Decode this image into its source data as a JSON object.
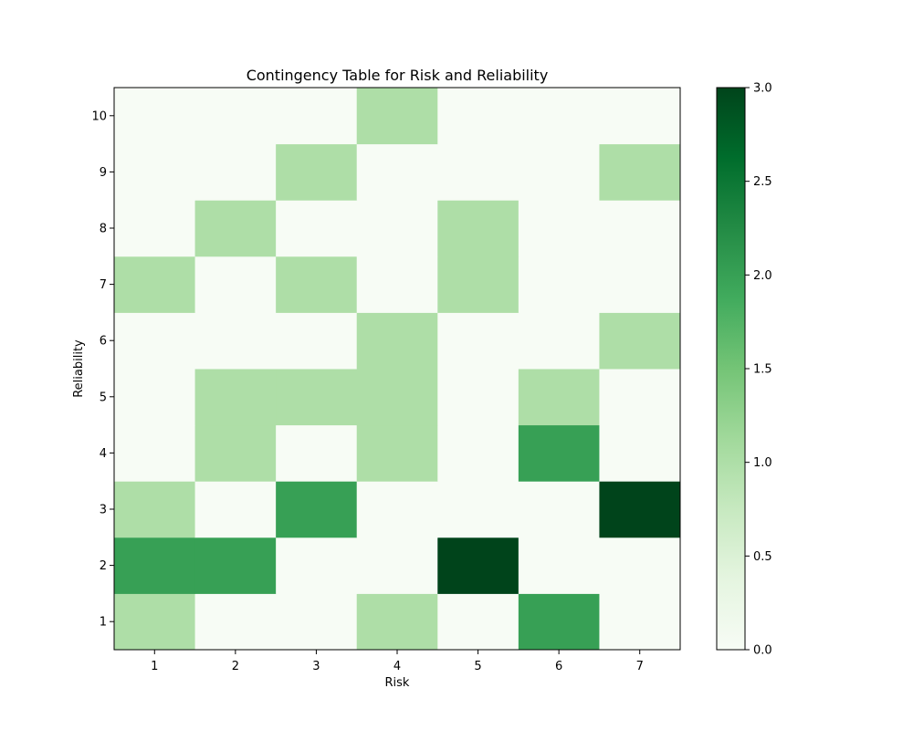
{
  "chart_data": {
    "type": "heatmap",
    "title": "Contingency Table for Risk and Reliability",
    "xlabel": "Risk",
    "ylabel": "Reliability",
    "x_categories": [
      "1",
      "2",
      "3",
      "4",
      "5",
      "6",
      "7"
    ],
    "y_categories": [
      "1",
      "2",
      "3",
      "4",
      "5",
      "6",
      "7",
      "8",
      "9",
      "10"
    ],
    "values": [
      [
        1,
        0,
        0,
        1,
        0,
        2,
        0
      ],
      [
        2,
        2,
        0,
        0,
        3,
        0,
        0
      ],
      [
        1,
        0,
        2,
        0,
        0,
        0,
        3
      ],
      [
        0,
        1,
        0,
        1,
        0,
        2,
        0
      ],
      [
        0,
        1,
        1,
        1,
        0,
        1,
        0
      ],
      [
        0,
        0,
        0,
        1,
        0,
        0,
        1
      ],
      [
        1,
        0,
        1,
        0,
        1,
        0,
        0
      ],
      [
        0,
        1,
        0,
        0,
        1,
        0,
        0
      ],
      [
        0,
        0,
        1,
        0,
        0,
        0,
        1
      ],
      [
        0,
        0,
        0,
        1,
        0,
        0,
        0
      ]
    ],
    "value_range": [
      0,
      3
    ],
    "colormap": "Greens",
    "colorbar": {
      "ticks": [
        "0.0",
        "0.5",
        "1.0",
        "1.5",
        "2.0",
        "2.5",
        "3.0"
      ]
    },
    "grid": false
  }
}
